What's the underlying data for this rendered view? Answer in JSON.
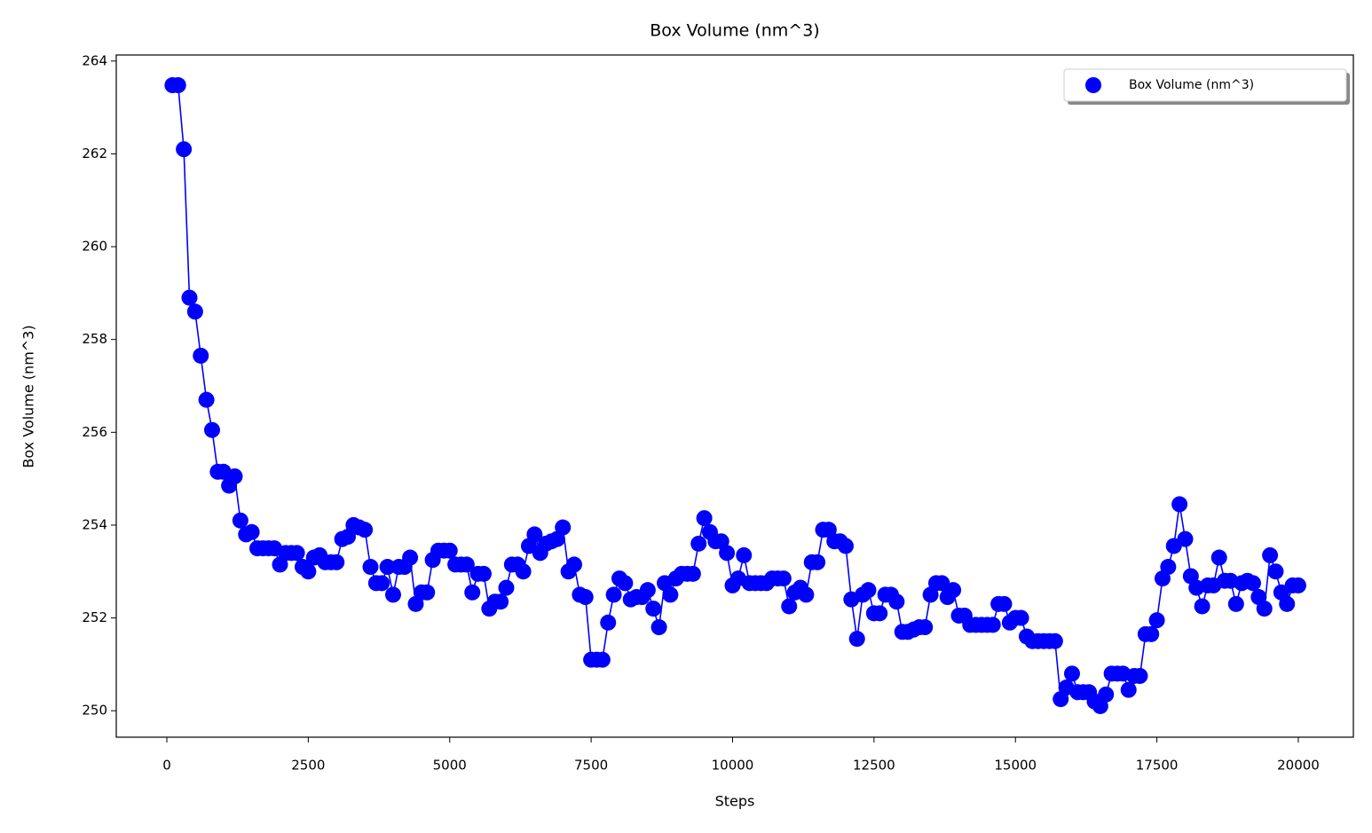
{
  "chart_data": {
    "type": "line",
    "title": "Box Volume (nm^3)",
    "x_label": "Steps",
    "y_label": "Box Volume (nm^3)",
    "x": [
      100,
      200,
      300,
      400,
      500,
      600,
      700,
      800,
      900,
      1000,
      1100,
      1200,
      1300,
      1400,
      1500,
      1600,
      1700,
      1800,
      1900,
      2000,
      2100,
      2200,
      2300,
      2400,
      2500,
      2600,
      2700,
      2800,
      2900,
      3000,
      3100,
      3200,
      3300,
      3400,
      3500,
      3600,
      3700,
      3800,
      3900,
      4000,
      4100,
      4200,
      4300,
      4400,
      4500,
      4600,
      4700,
      4800,
      4900,
      5000,
      5100,
      5200,
      5300,
      5400,
      5500,
      5600,
      5700,
      5800,
      5900,
      6000,
      6100,
      6200,
      6300,
      6400,
      6500,
      6600,
      6700,
      6800,
      6900,
      7000,
      7100,
      7200,
      7300,
      7400,
      7500,
      7600,
      7700,
      7800,
      7900,
      8000,
      8100,
      8200,
      8300,
      8400,
      8500,
      8600,
      8700,
      8800,
      8900,
      9000,
      9100,
      9200,
      9300,
      9400,
      9500,
      9600,
      9700,
      9800,
      9900,
      10000,
      10100,
      10200,
      10300,
      10400,
      10500,
      10600,
      10700,
      10800,
      10900,
      11000,
      11100,
      11200,
      11300,
      11400,
      11500,
      11600,
      11700,
      11800,
      11900,
      12000,
      12100,
      12200,
      12300,
      12400,
      12500,
      12600,
      12700,
      12800,
      12900,
      13000,
      13100,
      13200,
      13300,
      13400,
      13500,
      13600,
      13700,
      13800,
      13900,
      14000,
      14100,
      14200,
      14300,
      14400,
      14500,
      14600,
      14700,
      14800,
      14900,
      15000,
      15100,
      15200,
      15300,
      15400,
      15500,
      15600,
      15700,
      15800,
      15900,
      16000,
      16100,
      16200,
      16300,
      16400,
      16500,
      16600,
      16700,
      16800,
      16900,
      17000,
      17100,
      17200,
      17300,
      17400,
      17500,
      17600,
      17700,
      17800,
      17900,
      18000,
      18100,
      18200,
      18300,
      18400,
      18500,
      18600,
      18700,
      18800,
      18900,
      19000,
      19100,
      19200,
      19300,
      19400,
      19500,
      19600,
      19700,
      19800,
      19900,
      20000
    ],
    "series": [
      {
        "name": "Box Volume (nm^3)",
        "color": "#0000ff",
        "values": [
          263.48,
          263.48,
          262.1,
          258.9,
          258.6,
          257.65,
          256.7,
          256.05,
          255.15,
          255.15,
          254.85,
          255.05,
          254.1,
          253.8,
          253.85,
          253.5,
          253.5,
          253.5,
          253.5,
          253.15,
          253.4,
          253.4,
          253.4,
          253.1,
          253.0,
          253.3,
          253.35,
          253.2,
          253.2,
          253.2,
          253.7,
          253.75,
          254.0,
          253.95,
          253.9,
          253.1,
          252.75,
          252.75,
          253.1,
          252.5,
          253.1,
          253.1,
          253.3,
          252.3,
          252.55,
          252.55,
          253.25,
          253.45,
          253.45,
          253.45,
          253.15,
          253.15,
          253.15,
          252.55,
          252.95,
          252.95,
          252.2,
          252.35,
          252.35,
          252.65,
          253.15,
          253.15,
          253.0,
          253.55,
          253.8,
          253.4,
          253.6,
          253.65,
          253.7,
          253.95,
          253.0,
          253.15,
          252.5,
          252.45,
          251.1,
          251.1,
          251.1,
          251.9,
          252.5,
          252.85,
          252.75,
          252.4,
          252.45,
          252.45,
          252.6,
          252.2,
          251.8,
          252.75,
          252.5,
          252.85,
          252.95,
          252.95,
          252.95,
          253.6,
          254.15,
          253.85,
          253.65,
          253.65,
          253.4,
          252.7,
          252.85,
          253.35,
          252.75,
          252.75,
          252.75,
          252.75,
          252.85,
          252.85,
          252.85,
          252.25,
          252.55,
          252.65,
          252.5,
          253.2,
          253.2,
          253.9,
          253.9,
          253.65,
          253.65,
          253.55,
          252.4,
          251.55,
          252.5,
          252.6,
          252.1,
          252.1,
          252.5,
          252.5,
          252.35,
          251.7,
          251.7,
          251.75,
          251.8,
          251.8,
          252.5,
          252.75,
          252.75,
          252.45,
          252.6,
          252.05,
          252.05,
          251.85,
          251.85,
          251.85,
          251.85,
          251.85,
          252.3,
          252.3,
          251.9,
          252.0,
          252.0,
          251.6,
          251.5,
          251.5,
          251.5,
          251.5,
          251.5,
          250.25,
          250.5,
          250.8,
          250.4,
          250.4,
          250.4,
          250.2,
          250.1,
          250.35,
          250.8,
          250.8,
          250.8,
          250.45,
          250.75,
          250.75,
          251.65,
          251.65,
          251.95,
          252.85,
          253.1,
          253.55,
          254.45,
          253.7,
          252.9,
          252.65,
          252.25,
          252.7,
          252.7,
          253.3,
          252.8,
          252.8,
          252.3,
          252.75,
          252.8,
          252.75,
          252.45,
          252.2,
          253.35,
          253.0,
          252.55,
          252.3,
          252.7,
          252.7
        ]
      }
    ],
    "xlim": [
      -894,
      20973
    ],
    "ylim": [
      249.43,
      264.13
    ],
    "xticks": [
      0,
      2500,
      5000,
      7500,
      10000,
      12500,
      15000,
      17500,
      20000
    ],
    "yticks": [
      250,
      252,
      254,
      256,
      258,
      260,
      262,
      264
    ],
    "legend": "upper right",
    "markers": true
  }
}
